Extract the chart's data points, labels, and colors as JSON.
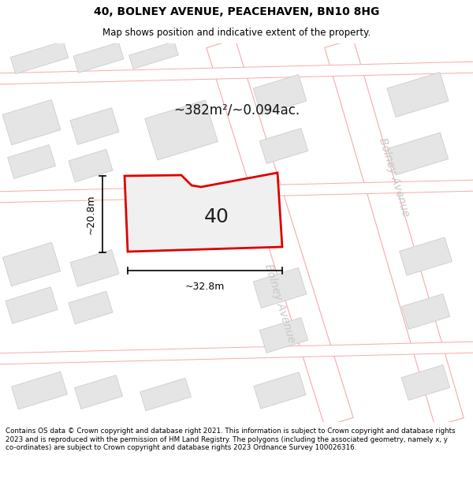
{
  "title_line1": "40, BOLNEY AVENUE, PEACEHAVEN, BN10 8HG",
  "title_line2": "Map shows position and indicative extent of the property.",
  "area_label": "~382m²/~0.094ac.",
  "number_label": "40",
  "width_label": "~32.8m",
  "height_label": "~20.8m",
  "street_label_upper": "Bolney Avenue",
  "street_label_lower": "Bolney Avenue",
  "footer_text": "Contains OS data © Crown copyright and database right 2021. This information is subject to Crown copyright and database rights 2023 and is reproduced with the permission of HM Land Registry. The polygons (including the associated geometry, namely x, y co-ordinates) are subject to Crown copyright and database rights 2023 Ordnance Survey 100026316.",
  "bg_color": "#ffffff",
  "map_bg_color": "#f7f7f7",
  "block_fill": "#e5e5e5",
  "block_edge": "#cccccc",
  "road_color": "#f5aaaa",
  "prop_fill": "#f0f0f0",
  "prop_edge": "#dd0000",
  "prop_lw": 2.0,
  "street_text_color": "#c8c8c8",
  "title_color": "#000000",
  "dim_color": "#000000",
  "number_color": "#222222",
  "area_color": "#111111",
  "footer_color": "#000000"
}
